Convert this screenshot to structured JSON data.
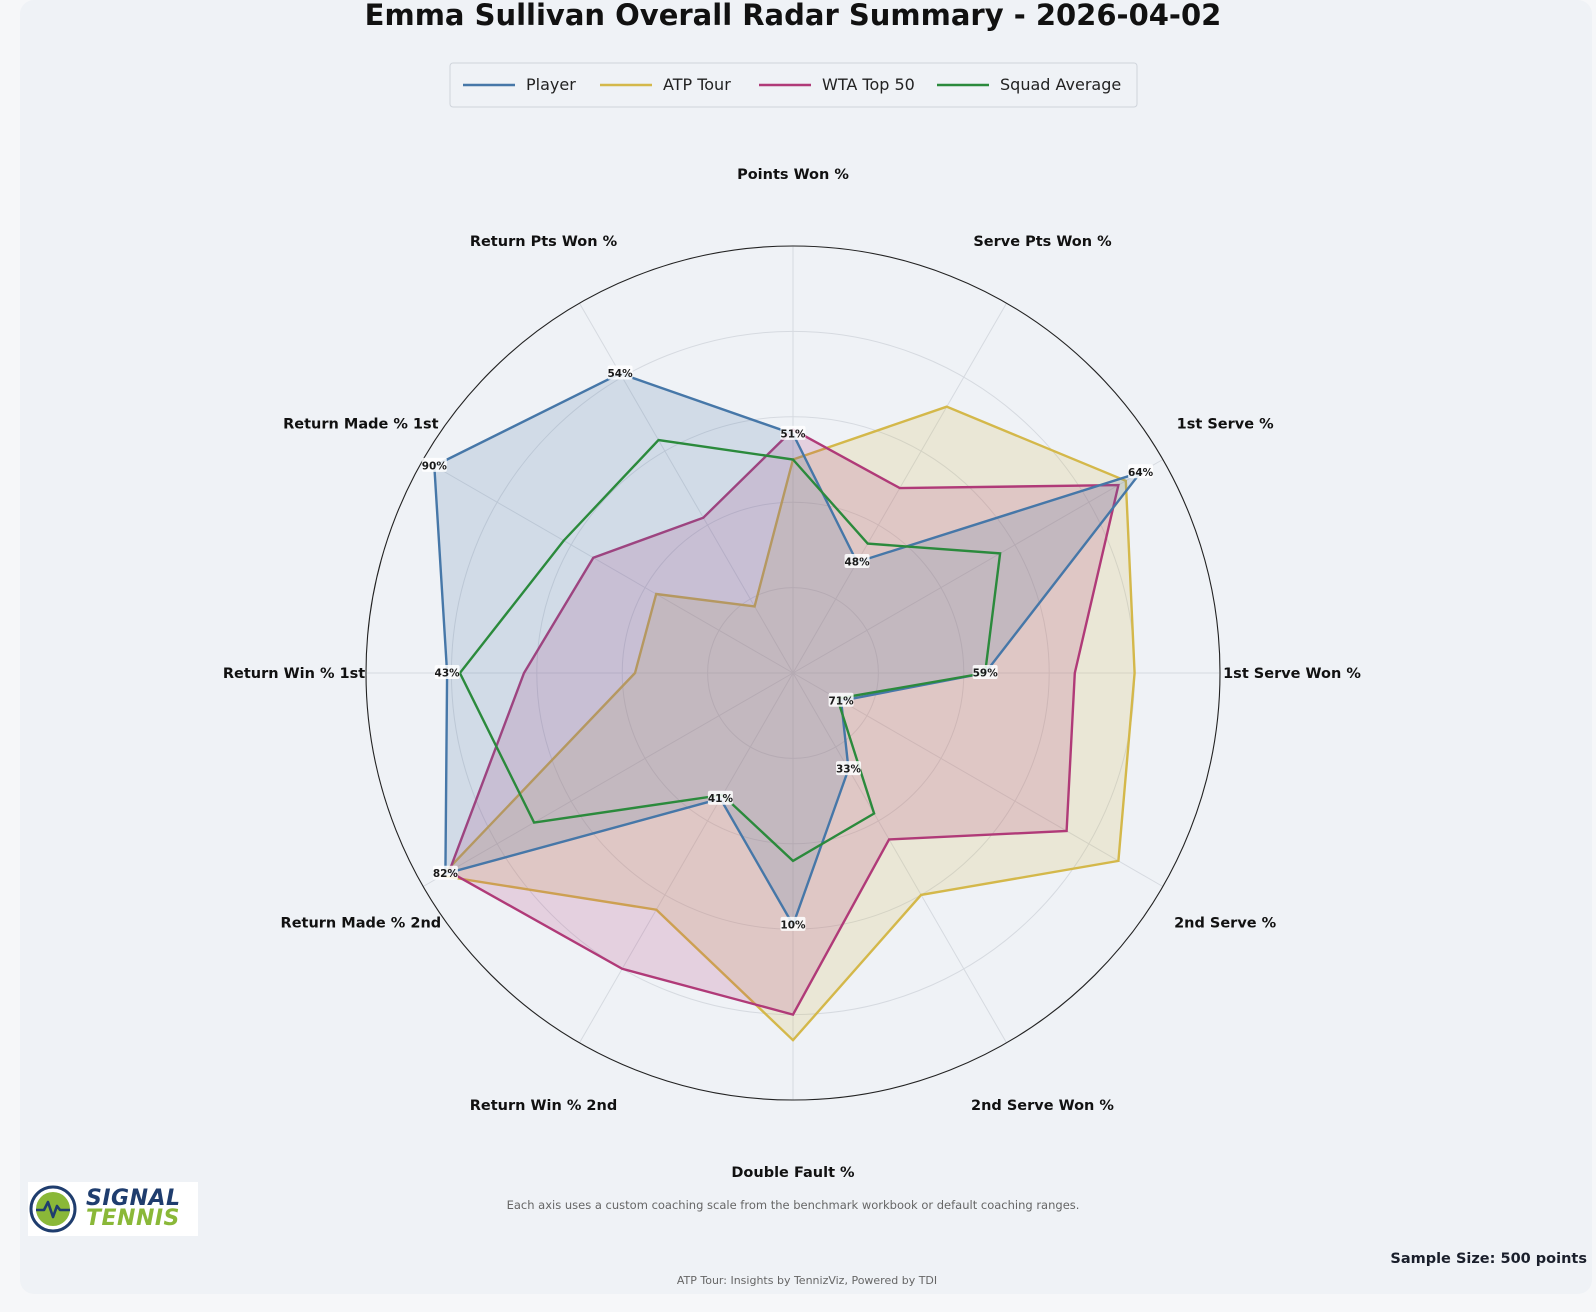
{
  "chart_data": {
    "type": "radar",
    "title": "Emma Sullivan Overall Radar Summary - 2026-04-02",
    "legend_position": "top-center",
    "axes": [
      "Points Won %",
      "Serve Pts Won %",
      "1st Serve %",
      "1st Serve Won %",
      "2nd Serve %",
      "2nd Serve Won %",
      "Double Fault %",
      "Return Win % 2nd",
      "Return Made % 2nd",
      "Return Win % 1st",
      "Return Made % 1st",
      "Return Pts Won %"
    ],
    "scale": "normalized 0-1 per axis (custom coaching scale)",
    "grid": true,
    "series": [
      {
        "name": "Player",
        "color": "#4677a8",
        "fill": true,
        "values": [
          0.56,
          0.3,
          0.94,
          0.45,
          0.13,
          0.26,
          0.59,
          0.34,
          0.94,
          0.81,
          0.97,
          0.81
        ],
        "value_labels": [
          "51%",
          "48%",
          "64%",
          "59%",
          "71%",
          "33%",
          "10%",
          "41%",
          "82%",
          "43%",
          "90%",
          "54%"
        ]
      },
      {
        "name": "ATP Tour",
        "color": "#d4b84a",
        "fill": true,
        "values": [
          0.5,
          0.72,
          0.9,
          0.8,
          0.88,
          0.6,
          0.86,
          0.64,
          0.95,
          0.37,
          0.37,
          0.18
        ],
        "value_labels": []
      },
      {
        "name": "WTA Top 50",
        "color": "#b03a78",
        "fill": true,
        "values": [
          0.57,
          0.5,
          0.88,
          0.66,
          0.74,
          0.45,
          0.8,
          0.8,
          0.93,
          0.63,
          0.54,
          0.42
        ],
        "value_labels": []
      },
      {
        "name": "Squad Average",
        "color": "#2b8a3c",
        "fill": false,
        "values": [
          0.5,
          0.35,
          0.56,
          0.45,
          0.12,
          0.38,
          0.44,
          0.33,
          0.7,
          0.78,
          0.62,
          0.63
        ],
        "value_labels": []
      }
    ]
  },
  "footnote": "Each axis uses a custom coaching scale from the benchmark workbook or default coaching ranges.",
  "sample_size": "Sample Size: 500 points",
  "credit": "ATP Tour: Insights by TennizViz, Powered by TDI",
  "logo": {
    "line1": "SIGNAL",
    "line2": "TENNIS",
    "icon": "tennis-ball-pulse-icon"
  }
}
